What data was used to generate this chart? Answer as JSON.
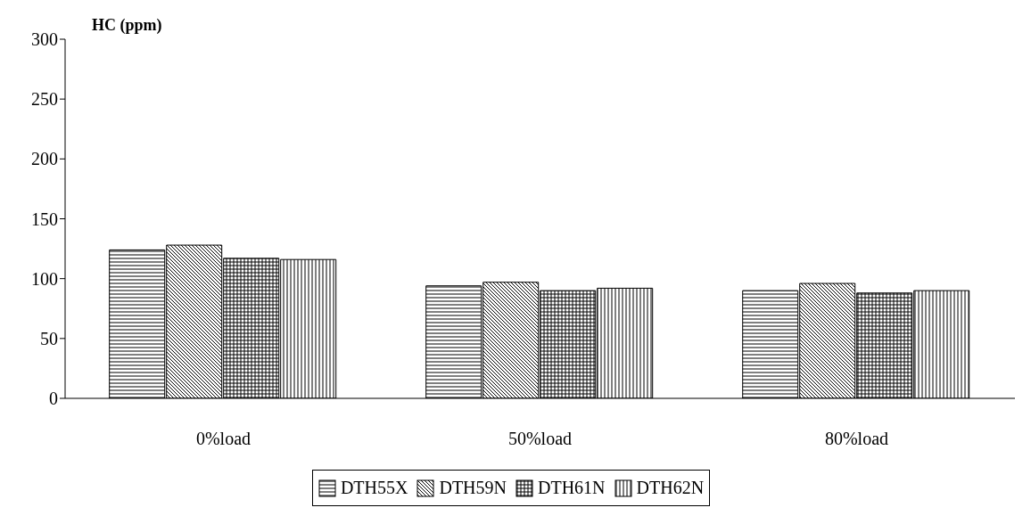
{
  "chart_data": {
    "type": "bar",
    "ylabel": "HC (ppm)",
    "categories": [
      "0%load",
      "50%load",
      "80%load"
    ],
    "series": [
      {
        "name": "DTH55X",
        "color": "#000000",
        "values": [
          124,
          94,
          90
        ]
      },
      {
        "name": "DTH59N",
        "color": "#000000",
        "values": [
          128,
          97,
          96
        ]
      },
      {
        "name": "DTH61N",
        "color": "#000000",
        "values": [
          117,
          90,
          88
        ]
      },
      {
        "name": "DTH62N",
        "color": "#000000",
        "values": [
          116,
          92,
          90
        ]
      }
    ],
    "ylim": [
      0,
      300
    ],
    "yticks": [
      0,
      50,
      100,
      150,
      200,
      250,
      300
    ],
    "legend": "bottom"
  }
}
